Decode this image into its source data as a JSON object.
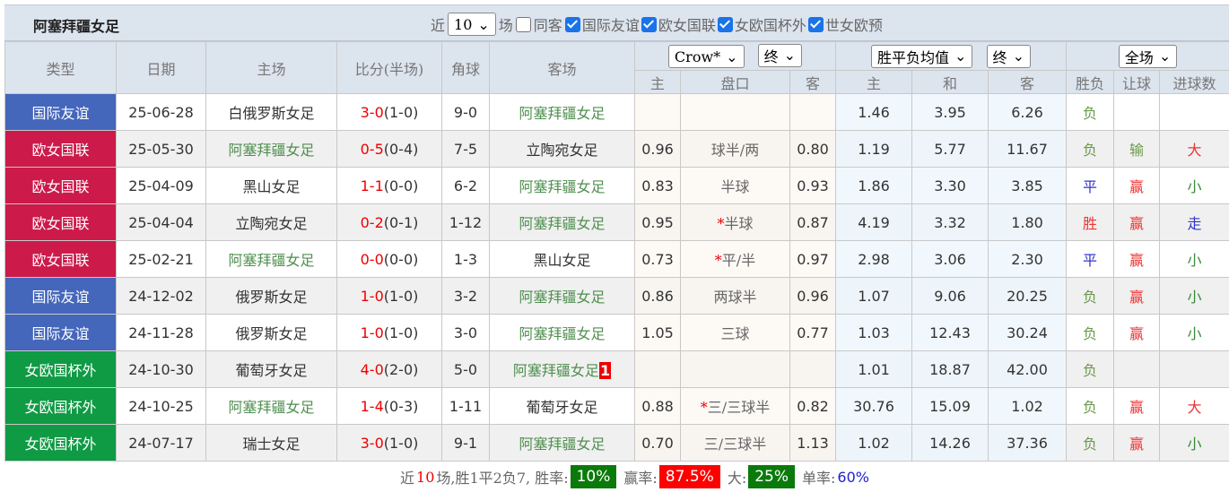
{
  "title": "阿塞拜疆女足",
  "filters": {
    "near": "近",
    "count": "10",
    "unit": "场",
    "same_guest": "同客",
    "same_guest_checked": false,
    "leagues": [
      {
        "label": "国际友谊",
        "checked": true
      },
      {
        "label": "欧女国联",
        "checked": true
      },
      {
        "label": "女欧国杯外",
        "checked": true
      },
      {
        "label": "世女欧预",
        "checked": true
      }
    ]
  },
  "header": {
    "type": "类型",
    "date": "日期",
    "home": "主场",
    "score": "比分(半场)",
    "corner": "角球",
    "away": "客场",
    "company_select": "Crow*",
    "hc_time_select": "终",
    "odds_select": "胜平负均值",
    "odds_time_select": "终",
    "period_select": "全场",
    "hc_home": "主",
    "hc_line": "盘口",
    "hc_away": "客",
    "o_home": "主",
    "o_draw": "和",
    "o_away": "客",
    "wl": "胜负",
    "ah": "让球",
    "ou": "进球数"
  },
  "colors": {
    "国际友谊": "#4466bb",
    "欧女国联": "#cc1a4a",
    "女欧国杯外": "#0f9a44",
    "win": "#e33",
    "lose": "#6a9a4a",
    "draw": "#33c",
    "big": "#e33",
    "small": "#3a8a3a",
    "walk": "#33c"
  },
  "rows": [
    {
      "type": "国际友谊",
      "date": "25-06-28",
      "home": "白俄罗斯女足",
      "home_team": false,
      "score": "3-0",
      "half": "(1-0)",
      "corner": "9-0",
      "away": "阿塞拜疆女足",
      "away_team": true,
      "hh": "",
      "line": "",
      "star": false,
      "ha": "",
      "oh": "1.46",
      "od": "3.95",
      "oa": "6.26",
      "wl": "负",
      "ah": "",
      "ou": ""
    },
    {
      "type": "欧女国联",
      "date": "25-05-30",
      "home": "阿塞拜疆女足",
      "home_team": true,
      "score": "0-5",
      "half": "(0-4)",
      "corner": "7-5",
      "away": "立陶宛女足",
      "away_team": false,
      "hh": "0.96",
      "line": "球半/两",
      "star": false,
      "ha": "0.80",
      "oh": "1.19",
      "od": "5.77",
      "oa": "11.67",
      "wl": "负",
      "ah": "输",
      "ou": "大"
    },
    {
      "type": "欧女国联",
      "date": "25-04-09",
      "home": "黑山女足",
      "home_team": false,
      "score": "1-1",
      "half": "(0-0)",
      "corner": "6-2",
      "away": "阿塞拜疆女足",
      "away_team": true,
      "hh": "0.83",
      "line": "半球",
      "star": false,
      "ha": "0.93",
      "oh": "1.86",
      "od": "3.30",
      "oa": "3.85",
      "wl": "平",
      "ah": "赢",
      "ou": "小"
    },
    {
      "type": "欧女国联",
      "date": "25-04-04",
      "home": "立陶宛女足",
      "home_team": false,
      "score": "0-2",
      "half": "(0-1)",
      "corner": "1-12",
      "away": "阿塞拜疆女足",
      "away_team": true,
      "hh": "0.95",
      "line": "半球",
      "star": true,
      "ha": "0.87",
      "oh": "4.19",
      "od": "3.32",
      "oa": "1.80",
      "wl": "胜",
      "ah": "赢",
      "ou": "走"
    },
    {
      "type": "欧女国联",
      "date": "25-02-21",
      "home": "阿塞拜疆女足",
      "home_team": true,
      "score": "0-0",
      "half": "(0-0)",
      "corner": "1-3",
      "away": "黑山女足",
      "away_team": false,
      "hh": "0.73",
      "line": "平/半",
      "star": true,
      "ha": "0.97",
      "oh": "2.98",
      "od": "3.06",
      "oa": "2.30",
      "wl": "平",
      "ah": "赢",
      "ou": "小"
    },
    {
      "type": "国际友谊",
      "date": "24-12-02",
      "home": "俄罗斯女足",
      "home_team": false,
      "score": "1-0",
      "half": "(1-0)",
      "corner": "3-2",
      "away": "阿塞拜疆女足",
      "away_team": true,
      "hh": "0.86",
      "line": "两球半",
      "star": false,
      "ha": "0.96",
      "oh": "1.07",
      "od": "9.06",
      "oa": "20.25",
      "wl": "负",
      "ah": "赢",
      "ou": "小"
    },
    {
      "type": "国际友谊",
      "date": "24-11-28",
      "home": "俄罗斯女足",
      "home_team": false,
      "score": "1-0",
      "half": "(1-0)",
      "corner": "3-0",
      "away": "阿塞拜疆女足",
      "away_team": true,
      "hh": "1.05",
      "line": "三球",
      "star": false,
      "ha": "0.77",
      "oh": "1.03",
      "od": "12.43",
      "oa": "30.24",
      "wl": "负",
      "ah": "赢",
      "ou": "小"
    },
    {
      "type": "女欧国杯外",
      "date": "24-10-30",
      "home": "葡萄牙女足",
      "home_team": false,
      "score": "4-0",
      "half": "(2-0)",
      "corner": "5-0",
      "away": "阿塞拜疆女足",
      "away_team": true,
      "away_badge": "1",
      "hh": "",
      "line": "",
      "star": false,
      "ha": "",
      "oh": "1.01",
      "od": "18.87",
      "oa": "42.00",
      "wl": "负",
      "ah": "",
      "ou": ""
    },
    {
      "type": "女欧国杯外",
      "date": "24-10-25",
      "home": "阿塞拜疆女足",
      "home_team": true,
      "score": "1-4",
      "half": "(0-3)",
      "corner": "1-11",
      "away": "葡萄牙女足",
      "away_team": false,
      "hh": "0.88",
      "line": "三/三球半",
      "star": true,
      "ha": "0.82",
      "oh": "30.76",
      "od": "15.09",
      "oa": "1.02",
      "wl": "负",
      "ah": "赢",
      "ou": "大"
    },
    {
      "type": "女欧国杯外",
      "date": "24-07-17",
      "home": "瑞士女足",
      "home_team": false,
      "score": "3-0",
      "half": "(1-0)",
      "corner": "9-1",
      "away": "阿塞拜疆女足",
      "away_team": true,
      "hh": "0.70",
      "line": "三/三球半",
      "star": false,
      "ha": "1.13",
      "oh": "1.02",
      "od": "14.26",
      "oa": "37.36",
      "wl": "负",
      "ah": "赢",
      "ou": "小"
    }
  ],
  "summary": {
    "p1": "近",
    "n": "10",
    "p2": "场,胜1平2负7, 胜率:",
    "win_rate": "10%",
    "p3": "赢率:",
    "ah_rate": "87.5%",
    "p4": "大:",
    "big_rate": "25%",
    "p5": "单率:",
    "odd_rate": "60%"
  }
}
